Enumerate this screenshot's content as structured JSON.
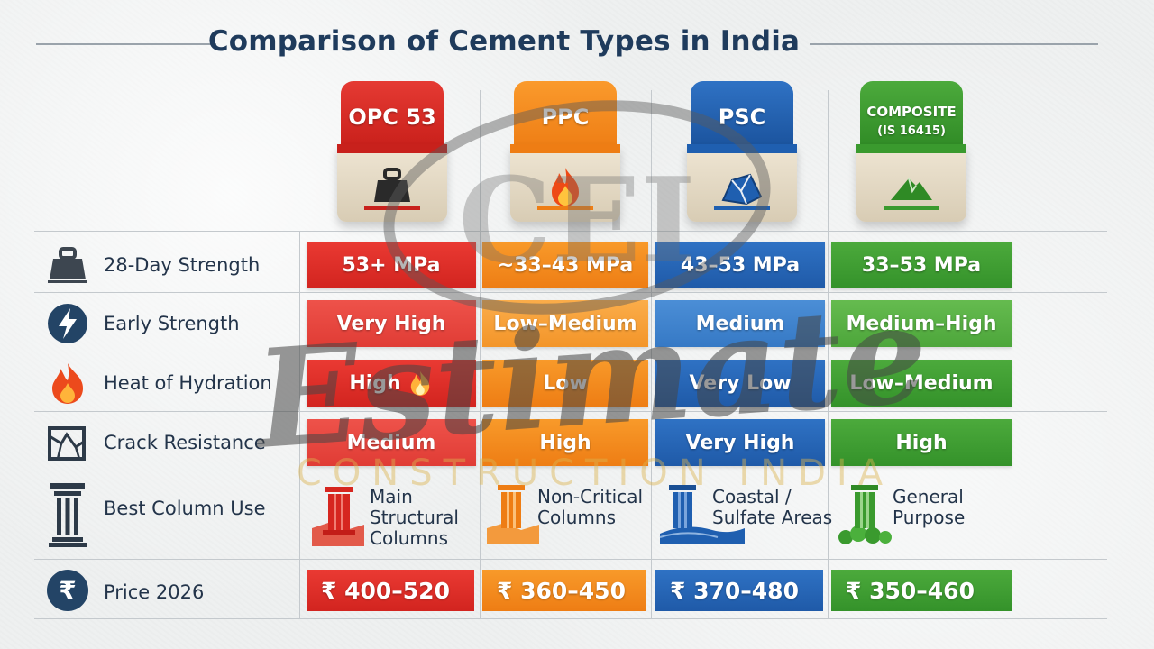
{
  "title": "Comparison of Cement Types in India",
  "bags": [
    {
      "label": "OPC 53",
      "icon": "weight-icon",
      "color": "#d9261f"
    },
    {
      "label": "PPC",
      "icon": "flame-icon",
      "color": "#f08216"
    },
    {
      "label": "PSC",
      "icon": "cracked-block-icon",
      "color": "#1f5fb0"
    },
    {
      "label": "COMPOSITE",
      "sublabel": "(IS 16415)",
      "icon": "mound-icon",
      "color": "#3a9a2e"
    }
  ],
  "rows": [
    {
      "label": "28-Day Strength",
      "icon": "weight-icon",
      "values": [
        "53+ MPa",
        "~33–43 MPa",
        "43–53 MPa",
        "33–53 MPa"
      ]
    },
    {
      "label": "Early Strength",
      "icon": "lightning-icon",
      "values": [
        "Very High",
        "Low–Medium",
        "Medium",
        "Medium–High"
      ]
    },
    {
      "label": "Heat of Hydration",
      "icon": "flame-icon",
      "values": [
        "High",
        "Low",
        "Very Low",
        "Low–Medium"
      ]
    },
    {
      "label": "Crack Resistance",
      "icon": "cracked-square-icon",
      "values": [
        "Medium",
        "High",
        "Very High",
        "High"
      ]
    }
  ],
  "use_row": {
    "label": "Best Column Use",
    "icon": "column-icon",
    "values": [
      {
        "line1": "Main",
        "line2": "Structural",
        "line3": "Columns"
      },
      {
        "line1": "Non-Critical",
        "line2": "Columns"
      },
      {
        "line1": "Coastal /",
        "line2": "Sulfate Areas"
      },
      {
        "line1": "General",
        "line2": "Purpose"
      }
    ]
  },
  "price_row": {
    "label": "Price 2026",
    "icon": "rupee-icon",
    "values": [
      "₹ 400–520",
      "₹ 360–450",
      "₹ 370–480",
      "₹ 350–460"
    ]
  },
  "watermark": {
    "logo": "CEI",
    "script": "Estimate",
    "tagline": "CONSTRUCTION INDIA"
  },
  "colors": {
    "red": "#d9261f",
    "orange": "#f08216",
    "blue": "#1f5fb0",
    "green": "#3a9a2e",
    "navy": "#1f3b5c"
  }
}
